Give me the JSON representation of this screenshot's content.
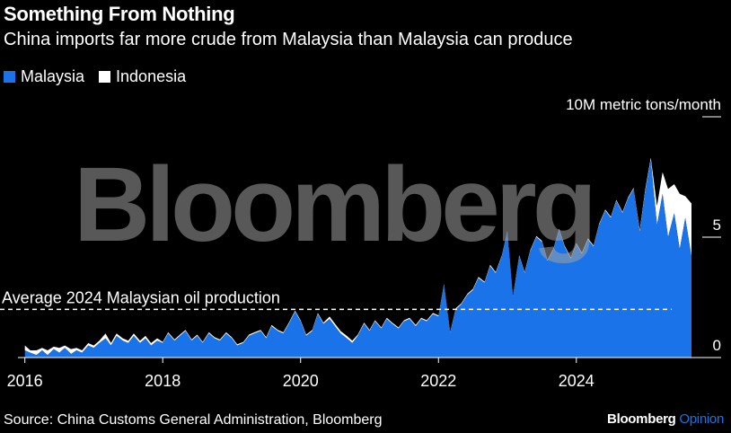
{
  "header": {
    "title": "Something From Nothing",
    "subtitle": "China imports far more crude from Malaysia than Malaysia can produce"
  },
  "legend": {
    "items": [
      {
        "label": "Malaysia",
        "color": "#1a73e8"
      },
      {
        "label": "Indonesia",
        "color": "#ffffff"
      }
    ]
  },
  "footer": {
    "source": "Source: China Customs General Administration, Bloomberg",
    "brand_main": "Bloomberg",
    "brand_sub": "Opinion"
  },
  "watermark": "Bloomberg",
  "chart_data": {
    "type": "area",
    "title": "Something From Nothing",
    "subtitle": "China imports far more crude from Malaysia than Malaysia can produce",
    "unit_label": "10M metric tons/month",
    "y_ticks": [
      {
        "value": 0,
        "label": "0"
      },
      {
        "value": 5,
        "label": "5"
      },
      {
        "value": 10,
        "label": "10M metric tons/month"
      }
    ],
    "x_ticks": [
      2016,
      2018,
      2020,
      2022,
      2024
    ],
    "xlim": [
      2015.9,
      2026.1
    ],
    "ylim": [
      0,
      10
    ],
    "stacked": true,
    "annotation": {
      "label": "Average 2024 Malaysian oil production",
      "value": 2.0
    },
    "series": [
      {
        "name": "Malaysia",
        "color": "#1a73e8",
        "points": [
          [
            2016.0,
            0.3
          ],
          [
            2016.08,
            0.2
          ],
          [
            2016.17,
            0.1
          ],
          [
            2016.25,
            0.3
          ],
          [
            2016.33,
            0.1
          ],
          [
            2016.42,
            0.35
          ],
          [
            2016.5,
            0.2
          ],
          [
            2016.58,
            0.4
          ],
          [
            2016.67,
            0.15
          ],
          [
            2016.75,
            0.3
          ],
          [
            2016.83,
            0.2
          ],
          [
            2016.92,
            0.5
          ],
          [
            2017.0,
            0.4
          ],
          [
            2017.08,
            0.6
          ],
          [
            2017.17,
            0.8
          ],
          [
            2017.25,
            0.5
          ],
          [
            2017.33,
            0.9
          ],
          [
            2017.42,
            0.7
          ],
          [
            2017.5,
            0.6
          ],
          [
            2017.58,
            0.9
          ],
          [
            2017.67,
            0.6
          ],
          [
            2017.75,
            0.8
          ],
          [
            2017.83,
            0.5
          ],
          [
            2017.92,
            0.7
          ],
          [
            2018.0,
            0.6
          ],
          [
            2018.08,
            1.0
          ],
          [
            2018.17,
            0.7
          ],
          [
            2018.25,
            0.9
          ],
          [
            2018.33,
            1.1
          ],
          [
            2018.42,
            0.7
          ],
          [
            2018.5,
            0.9
          ],
          [
            2018.58,
            0.6
          ],
          [
            2018.67,
            1.0
          ],
          [
            2018.75,
            0.8
          ],
          [
            2018.83,
            0.7
          ],
          [
            2018.92,
            1.0
          ],
          [
            2019.0,
            0.8
          ],
          [
            2019.08,
            0.5
          ],
          [
            2019.17,
            0.6
          ],
          [
            2019.25,
            0.9
          ],
          [
            2019.33,
            1.0
          ],
          [
            2019.42,
            1.1
          ],
          [
            2019.5,
            0.8
          ],
          [
            2019.58,
            1.3
          ],
          [
            2019.67,
            1.1
          ],
          [
            2019.75,
            1.0
          ],
          [
            2019.83,
            1.4
          ],
          [
            2019.92,
            1.9
          ],
          [
            2020.0,
            1.5
          ],
          [
            2020.08,
            0.9
          ],
          [
            2020.17,
            1.1
          ],
          [
            2020.25,
            1.8
          ],
          [
            2020.33,
            1.4
          ],
          [
            2020.42,
            1.6
          ],
          [
            2020.5,
            1.3
          ],
          [
            2020.58,
            1.0
          ],
          [
            2020.67,
            0.8
          ],
          [
            2020.75,
            0.6
          ],
          [
            2020.83,
            0.9
          ],
          [
            2020.92,
            1.4
          ],
          [
            2021.0,
            1.1
          ],
          [
            2021.08,
            1.5
          ],
          [
            2021.17,
            1.2
          ],
          [
            2021.25,
            1.6
          ],
          [
            2021.33,
            1.4
          ],
          [
            2021.42,
            1.2
          ],
          [
            2021.5,
            1.5
          ],
          [
            2021.58,
            1.6
          ],
          [
            2021.67,
            1.3
          ],
          [
            2021.75,
            1.6
          ],
          [
            2021.83,
            1.5
          ],
          [
            2021.92,
            1.8
          ],
          [
            2022.0,
            1.7
          ],
          [
            2022.08,
            3.0
          ],
          [
            2022.17,
            1.0
          ],
          [
            2022.25,
            2.0
          ],
          [
            2022.33,
            2.2
          ],
          [
            2022.42,
            2.6
          ],
          [
            2022.5,
            2.8
          ],
          [
            2022.58,
            3.3
          ],
          [
            2022.67,
            3.1
          ],
          [
            2022.75,
            3.8
          ],
          [
            2022.83,
            3.5
          ],
          [
            2022.92,
            4.2
          ],
          [
            2023.0,
            5.2
          ],
          [
            2023.08,
            2.5
          ],
          [
            2023.17,
            4.2
          ],
          [
            2023.25,
            3.5
          ],
          [
            2023.33,
            4.4
          ],
          [
            2023.42,
            5.0
          ],
          [
            2023.5,
            4.8
          ],
          [
            2023.58,
            4.0
          ],
          [
            2023.67,
            4.5
          ],
          [
            2023.75,
            5.3
          ],
          [
            2023.83,
            4.6
          ],
          [
            2023.92,
            4.1
          ],
          [
            2024.0,
            4.7
          ],
          [
            2024.08,
            4.3
          ],
          [
            2024.17,
            4.9
          ],
          [
            2024.25,
            4.6
          ],
          [
            2024.33,
            5.5
          ],
          [
            2024.42,
            6.1
          ],
          [
            2024.5,
            5.8
          ],
          [
            2024.58,
            6.5
          ],
          [
            2024.67,
            6.0
          ],
          [
            2024.75,
            6.6
          ],
          [
            2024.83,
            7.0
          ],
          [
            2024.92,
            5.2
          ],
          [
            2025.0,
            6.9
          ],
          [
            2025.08,
            8.2
          ],
          [
            2025.17,
            5.5
          ],
          [
            2025.25,
            6.8
          ],
          [
            2025.33,
            5.0
          ],
          [
            2025.42,
            6.0
          ],
          [
            2025.5,
            4.5
          ],
          [
            2025.58,
            5.8
          ],
          [
            2025.67,
            4.2
          ]
        ]
      },
      {
        "name": "Indonesia",
        "color": "#ffffff",
        "points": [
          [
            2016.0,
            0.2
          ],
          [
            2016.08,
            0.1
          ],
          [
            2016.17,
            0.2
          ],
          [
            2016.25,
            0.1
          ],
          [
            2016.33,
            0.2
          ],
          [
            2016.42,
            0.1
          ],
          [
            2016.5,
            0.2
          ],
          [
            2016.58,
            0.1
          ],
          [
            2016.67,
            0.2
          ],
          [
            2016.75,
            0.1
          ],
          [
            2016.83,
            0.1
          ],
          [
            2016.92,
            0.1
          ],
          [
            2017.0,
            0.1
          ],
          [
            2017.08,
            0.1
          ],
          [
            2017.17,
            0.2
          ],
          [
            2017.25,
            0.1
          ],
          [
            2017.33,
            0.1
          ],
          [
            2017.42,
            0.1
          ],
          [
            2017.5,
            0.1
          ],
          [
            2017.58,
            0.1
          ],
          [
            2017.67,
            0.1
          ],
          [
            2017.75,
            0.1
          ],
          [
            2017.83,
            0.1
          ],
          [
            2017.92,
            0.1
          ],
          [
            2018.0,
            0.05
          ],
          [
            2018.08,
            0.05
          ],
          [
            2018.17,
            0.05
          ],
          [
            2018.25,
            0.05
          ],
          [
            2018.33,
            0.05
          ],
          [
            2018.42,
            0.05
          ],
          [
            2018.5,
            0.05
          ],
          [
            2018.58,
            0.05
          ],
          [
            2018.67,
            0.05
          ],
          [
            2018.75,
            0.05
          ],
          [
            2018.83,
            0.05
          ],
          [
            2018.92,
            0.05
          ],
          [
            2019.0,
            0.05
          ],
          [
            2019.08,
            0.05
          ],
          [
            2019.17,
            0.05
          ],
          [
            2019.25,
            0.05
          ],
          [
            2019.33,
            0.05
          ],
          [
            2019.42,
            0.05
          ],
          [
            2019.5,
            0.05
          ],
          [
            2019.58,
            0.05
          ],
          [
            2019.67,
            0.05
          ],
          [
            2019.75,
            0.05
          ],
          [
            2019.83,
            0.05
          ],
          [
            2019.92,
            0.05
          ],
          [
            2020.0,
            0.05
          ],
          [
            2020.08,
            0.05
          ],
          [
            2020.17,
            0.05
          ],
          [
            2020.25,
            0.05
          ],
          [
            2020.33,
            0.05
          ],
          [
            2020.42,
            0.1
          ],
          [
            2020.5,
            0.1
          ],
          [
            2020.58,
            0.1
          ],
          [
            2020.67,
            0.1
          ],
          [
            2020.75,
            0.1
          ],
          [
            2020.83,
            0.05
          ],
          [
            2020.92,
            0.05
          ],
          [
            2021.0,
            0.05
          ],
          [
            2021.08,
            0.05
          ],
          [
            2021.17,
            0.05
          ],
          [
            2021.25,
            0.05
          ],
          [
            2021.33,
            0.05
          ],
          [
            2021.42,
            0.05
          ],
          [
            2021.5,
            0.05
          ],
          [
            2021.58,
            0.05
          ],
          [
            2021.67,
            0.05
          ],
          [
            2021.75,
            0.05
          ],
          [
            2021.83,
            0.05
          ],
          [
            2021.92,
            0.05
          ],
          [
            2022.0,
            0.05
          ],
          [
            2022.08,
            0.05
          ],
          [
            2022.17,
            0.05
          ],
          [
            2022.25,
            0.05
          ],
          [
            2022.33,
            0.05
          ],
          [
            2022.42,
            0.05
          ],
          [
            2022.5,
            0.05
          ],
          [
            2022.58,
            0.05
          ],
          [
            2022.67,
            0.05
          ],
          [
            2022.75,
            0.05
          ],
          [
            2022.83,
            0.05
          ],
          [
            2022.92,
            0.05
          ],
          [
            2023.0,
            0.05
          ],
          [
            2023.08,
            0.05
          ],
          [
            2023.17,
            0.05
          ],
          [
            2023.25,
            0.05
          ],
          [
            2023.33,
            0.05
          ],
          [
            2023.42,
            0.05
          ],
          [
            2023.5,
            0.05
          ],
          [
            2023.58,
            0.05
          ],
          [
            2023.67,
            0.05
          ],
          [
            2023.75,
            0.05
          ],
          [
            2023.83,
            0.05
          ],
          [
            2023.92,
            0.05
          ],
          [
            2024.0,
            0.05
          ],
          [
            2024.08,
            0.05
          ],
          [
            2024.17,
            0.05
          ],
          [
            2024.25,
            0.05
          ],
          [
            2024.33,
            0.05
          ],
          [
            2024.42,
            0.05
          ],
          [
            2024.5,
            0.05
          ],
          [
            2024.58,
            0.05
          ],
          [
            2024.67,
            0.05
          ],
          [
            2024.75,
            0.05
          ],
          [
            2024.83,
            0.05
          ],
          [
            2024.92,
            0.1
          ],
          [
            2025.0,
            0.1
          ],
          [
            2025.08,
            0.1
          ],
          [
            2025.17,
            0.8
          ],
          [
            2025.25,
            0.9
          ],
          [
            2025.33,
            2.0
          ],
          [
            2025.42,
            1.2
          ],
          [
            2025.5,
            2.3
          ],
          [
            2025.58,
            0.9
          ],
          [
            2025.67,
            2.2
          ]
        ]
      }
    ]
  }
}
